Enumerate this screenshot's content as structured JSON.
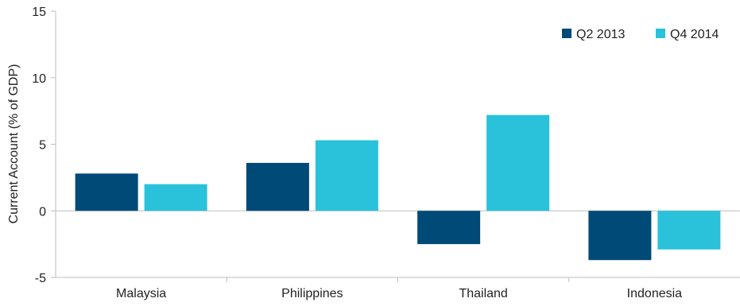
{
  "chart_data": {
    "type": "bar",
    "categories": [
      "Malaysia",
      "Philippines",
      "Thailand",
      "Indonesia"
    ],
    "series": [
      {
        "name": "Q2 2013",
        "color": "#004a77",
        "values": [
          2.8,
          3.6,
          -2.5,
          -3.7
        ]
      },
      {
        "name": "Q4 2014",
        "color": "#29c2da",
        "values": [
          2.0,
          5.3,
          7.2,
          -2.9
        ]
      }
    ],
    "title": "",
    "xlabel": "",
    "ylabel": "Current Account (% of GDP)",
    "ylim": [
      -5,
      15
    ],
    "yticks": [
      15,
      10,
      5,
      0,
      -5
    ],
    "grid": false,
    "legend_position": "top-right"
  }
}
